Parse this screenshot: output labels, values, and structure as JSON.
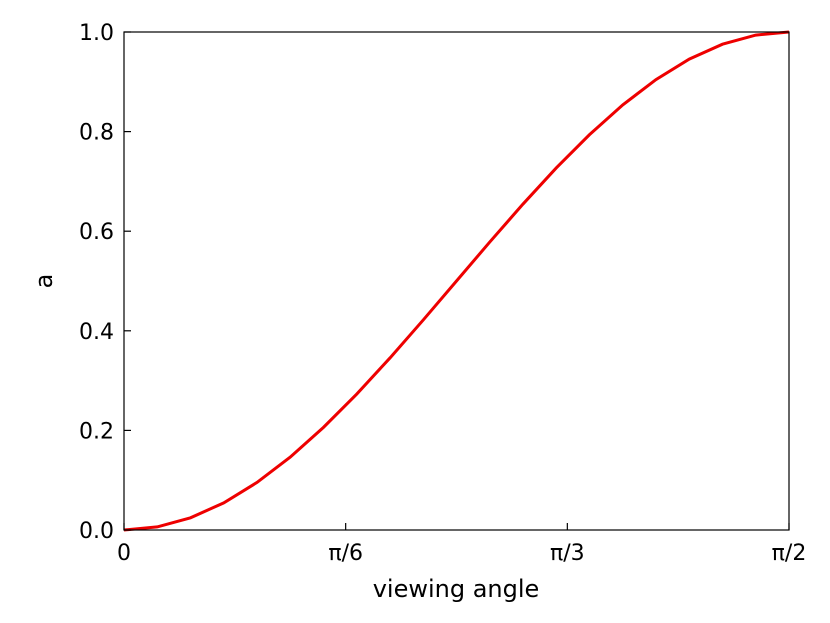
{
  "chart_data": {
    "type": "line",
    "title": "",
    "xlabel": "viewing angle",
    "ylabel": "a",
    "xlim": [
      0,
      1.5707963
    ],
    "ylim": [
      0.0,
      1.0
    ],
    "grid": false,
    "x_ticks": [
      {
        "value": 0,
        "label": "0"
      },
      {
        "value": 0.5235988,
        "label": "π/6"
      },
      {
        "value": 1.0471976,
        "label": "π/3"
      },
      {
        "value": 1.5707963,
        "label": "π/2"
      }
    ],
    "y_ticks": [
      {
        "value": 0.0,
        "label": "0.0"
      },
      {
        "value": 0.2,
        "label": "0.2"
      },
      {
        "value": 0.4,
        "label": "0.4"
      },
      {
        "value": 0.6,
        "label": "0.6"
      },
      {
        "value": 0.8,
        "label": "0.8"
      },
      {
        "value": 1.0,
        "label": "1.0"
      }
    ],
    "series": [
      {
        "color": "#ee0000",
        "x": [
          0,
          0.0785,
          0.1571,
          0.2356,
          0.3142,
          0.3927,
          0.4712,
          0.5498,
          0.6283,
          0.7069,
          0.7854,
          0.8639,
          0.9425,
          1.021,
          1.0996,
          1.1781,
          1.2566,
          1.3352,
          1.4137,
          1.4923,
          1.5708
        ],
        "y": [
          0.0,
          0.0062,
          0.0245,
          0.0545,
          0.0955,
          0.1464,
          0.2061,
          0.273,
          0.3455,
          0.4218,
          0.5,
          0.5782,
          0.6545,
          0.727,
          0.7939,
          0.8536,
          0.9045,
          0.9455,
          0.9755,
          0.9938,
          1.0
        ]
      }
    ]
  }
}
